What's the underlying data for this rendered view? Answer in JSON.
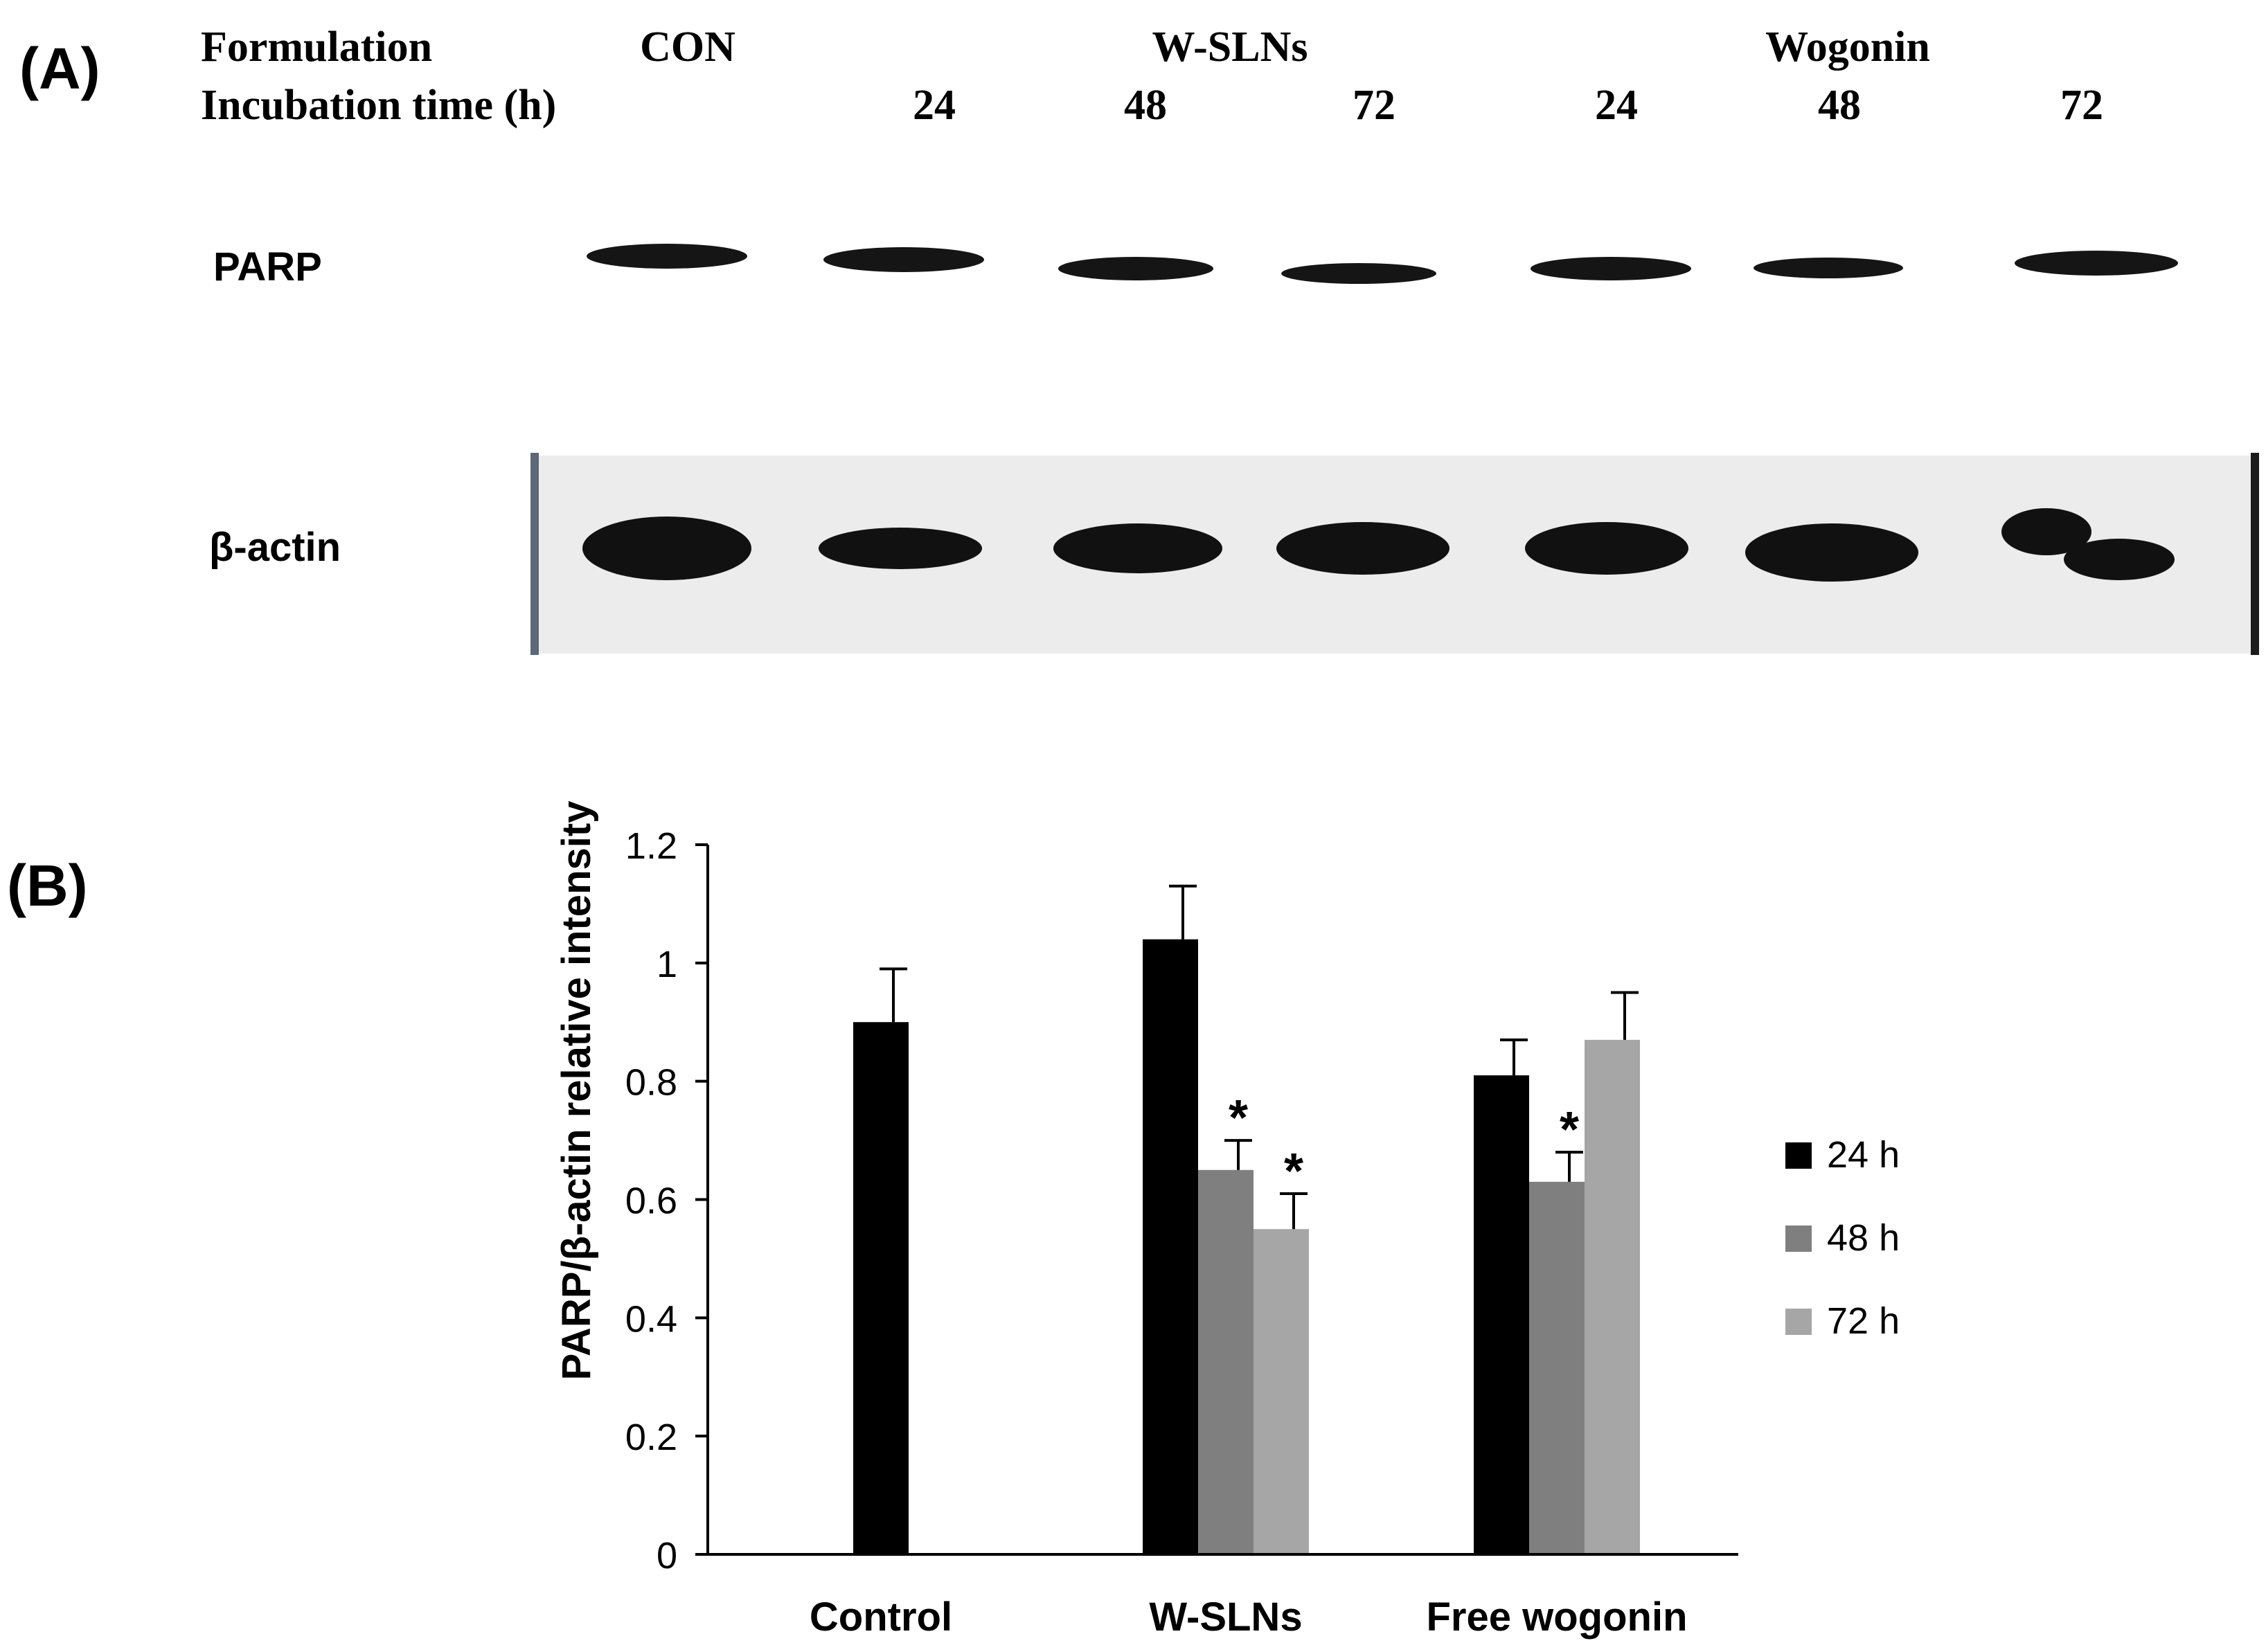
{
  "panel_a": {
    "label": "(A)",
    "formulation_label": "Formulation",
    "incubation_label": "Incubation time (h)",
    "groups": [
      "CON",
      "W-SLNs",
      "Wogonin"
    ],
    "times": [
      "24",
      "48",
      "72",
      "24",
      "48",
      "72"
    ],
    "blot_rows": [
      "PARP",
      "β-actin"
    ]
  },
  "chart_data": {
    "type": "bar",
    "panel_label": "(B)",
    "title": "",
    "xlabel": "",
    "ylabel": "PARP/β-actin relative intensity",
    "ylim": [
      0,
      1.2
    ],
    "yticks": [
      0,
      0.2,
      0.4,
      0.6,
      0.8,
      1,
      1.2
    ],
    "yticklabels": [
      "0",
      "0.2",
      "0.4",
      "0.6",
      "0.8",
      "1",
      "1.2"
    ],
    "categories": [
      "Control",
      "W-SLNs",
      "Free wogonin"
    ],
    "series": [
      {
        "name": "24 h",
        "color": "#000000",
        "values": [
          0.9,
          1.04,
          0.81
        ],
        "errors": [
          0.09,
          0.09,
          0.06
        ],
        "significant": [
          false,
          false,
          false
        ]
      },
      {
        "name": "48 h",
        "color": "#7f7f7f",
        "values": [
          null,
          0.65,
          0.63
        ],
        "errors": [
          null,
          0.05,
          0.05
        ],
        "significant": [
          false,
          true,
          true
        ]
      },
      {
        "name": "72 h",
        "color": "#a6a6a6",
        "values": [
          null,
          0.55,
          0.87
        ],
        "errors": [
          null,
          0.06,
          0.08
        ],
        "significant": [
          false,
          true,
          false
        ]
      }
    ],
    "significance_marker": "*",
    "legend_position": "right"
  }
}
